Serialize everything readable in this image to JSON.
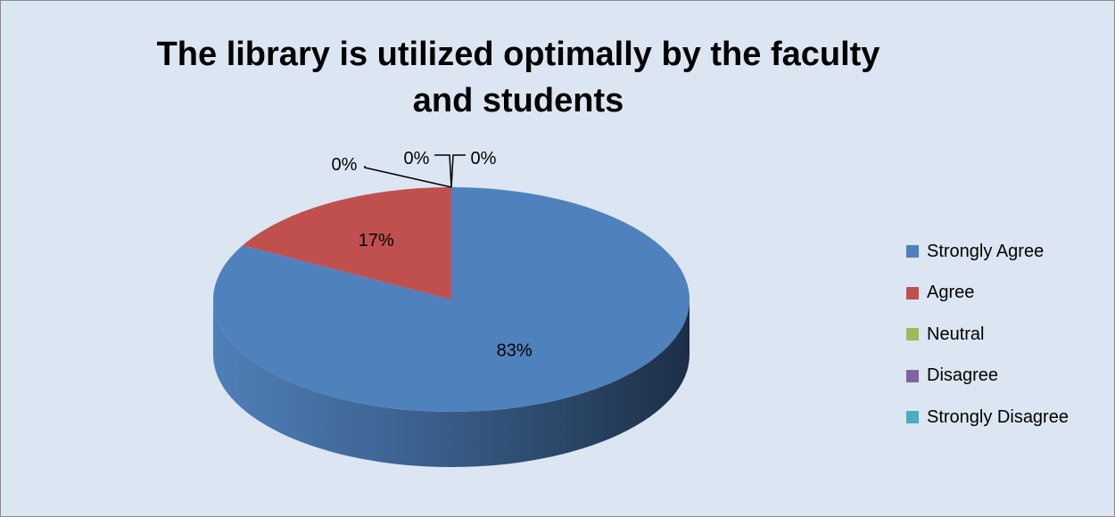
{
  "chart_data": {
    "type": "pie",
    "title_lines": [
      "The library is utilized optimally by the faculty",
      "and students"
    ],
    "categories": [
      "Strongly Agree",
      "Agree",
      "Neutral",
      "Disagree",
      "Strongly Disagree"
    ],
    "values": [
      83,
      17,
      0,
      0,
      0
    ],
    "data_labels": [
      "83%",
      "17%",
      "0%",
      "0%",
      "0%"
    ],
    "colors": [
      "#4f81bd",
      "#c0504d",
      "#9bbb59",
      "#8064a2",
      "#4bacc6"
    ],
    "style": "3d",
    "legend_position": "right"
  },
  "background_color": "#dce6f2"
}
